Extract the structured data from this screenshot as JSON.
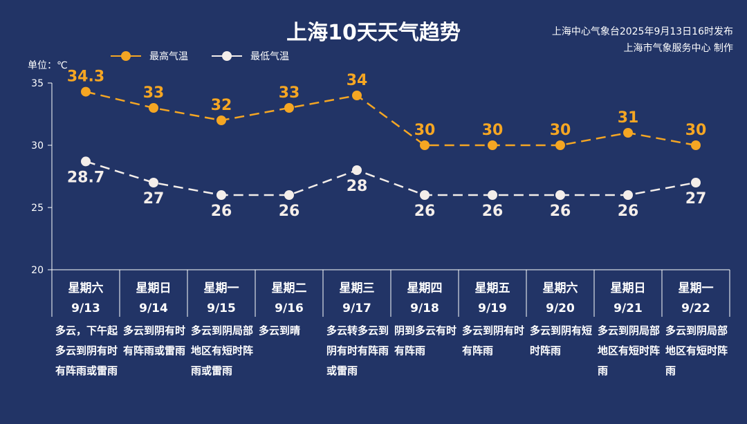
{
  "header": {
    "title": "上海10天天气趋势",
    "issuer_line1": "上海中心气象台2025年9月13日16时发布",
    "issuer_line2": "上海市气象服务中心 制作",
    "unit": "单位：℃"
  },
  "colors": {
    "background": "#223466",
    "high": "#F5A623",
    "low": "#F4EEEA",
    "axis": "#FFFFFF"
  },
  "chart_data": {
    "type": "line",
    "categories": [
      "9/13",
      "9/14",
      "9/15",
      "9/16",
      "9/17",
      "9/18",
      "9/19",
      "9/20",
      "9/21",
      "9/22"
    ],
    "weekdays": [
      "星期六",
      "星期日",
      "星期一",
      "星期二",
      "星期三",
      "星期四",
      "星期五",
      "星期六",
      "星期日",
      "星期一"
    ],
    "series": [
      {
        "name": "最高气温",
        "values": [
          34.3,
          33,
          32,
          33,
          34,
          30,
          30,
          30,
          31,
          30
        ],
        "labels": [
          "34.3",
          "33",
          "32",
          "33",
          "34",
          "30",
          "30",
          "30",
          "31",
          "30"
        ]
      },
      {
        "name": "最低气温",
        "values": [
          28.7,
          27,
          26,
          26,
          28,
          26,
          26,
          26,
          26,
          27
        ],
        "labels": [
          "28.7",
          "27",
          "26",
          "26",
          "28",
          "26",
          "26",
          "26",
          "26",
          "27"
        ]
      }
    ],
    "yticks": [
      "20",
      "25",
      "30",
      "35"
    ],
    "ylim": [
      20,
      35
    ],
    "line_style": "dashed",
    "weather": [
      "多云，下午起多云到阴有时有阵雨或雷雨",
      "多云到阴有时有阵雨或雷雨",
      "多云到阴局部地区有短时阵雨或雷雨",
      "多云到晴",
      "多云转多云到阴有时有阵雨或雷雨",
      "阴到多云有时有阵雨",
      "多云到阴有时有阵雨",
      "多云到阴有短时阵雨",
      "多云到阴局部地区有短时阵雨",
      "多云到阴局部地区有短时阵雨"
    ]
  }
}
